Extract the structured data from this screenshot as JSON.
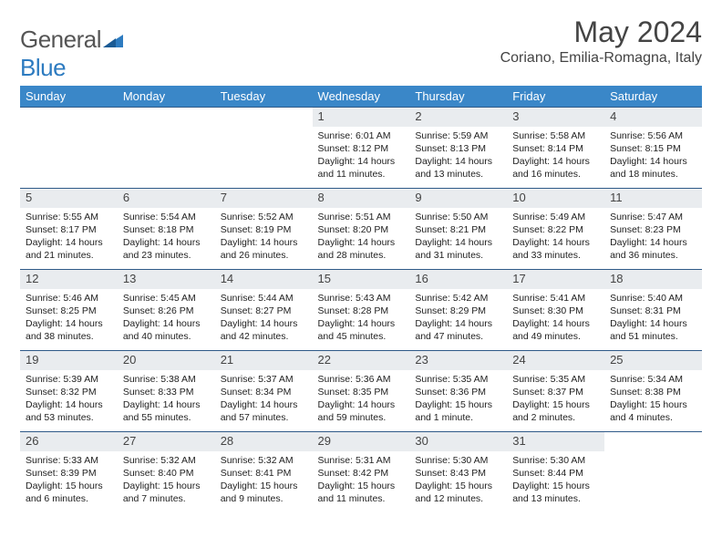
{
  "brand": {
    "name1": "General",
    "name2": "Blue"
  },
  "title": "May 2024",
  "location": "Coriano, Emilia-Romagna, Italy",
  "colors": {
    "header_bg": "#3a87c8",
    "header_text": "#ffffff",
    "daynum_bg": "#e9ecef",
    "border": "#2f5a88",
    "brand_blue": "#2d7bc0",
    "brand_gray": "#555555",
    "title_color": "#444444"
  },
  "weekdays": [
    "Sunday",
    "Monday",
    "Tuesday",
    "Wednesday",
    "Thursday",
    "Friday",
    "Saturday"
  ],
  "weeks": [
    [
      {
        "n": "",
        "lines": []
      },
      {
        "n": "",
        "lines": []
      },
      {
        "n": "",
        "lines": []
      },
      {
        "n": "1",
        "lines": [
          "Sunrise: 6:01 AM",
          "Sunset: 8:12 PM",
          "Daylight: 14 hours",
          "and 11 minutes."
        ]
      },
      {
        "n": "2",
        "lines": [
          "Sunrise: 5:59 AM",
          "Sunset: 8:13 PM",
          "Daylight: 14 hours",
          "and 13 minutes."
        ]
      },
      {
        "n": "3",
        "lines": [
          "Sunrise: 5:58 AM",
          "Sunset: 8:14 PM",
          "Daylight: 14 hours",
          "and 16 minutes."
        ]
      },
      {
        "n": "4",
        "lines": [
          "Sunrise: 5:56 AM",
          "Sunset: 8:15 PM",
          "Daylight: 14 hours",
          "and 18 minutes."
        ]
      }
    ],
    [
      {
        "n": "5",
        "lines": [
          "Sunrise: 5:55 AM",
          "Sunset: 8:17 PM",
          "Daylight: 14 hours",
          "and 21 minutes."
        ]
      },
      {
        "n": "6",
        "lines": [
          "Sunrise: 5:54 AM",
          "Sunset: 8:18 PM",
          "Daylight: 14 hours",
          "and 23 minutes."
        ]
      },
      {
        "n": "7",
        "lines": [
          "Sunrise: 5:52 AM",
          "Sunset: 8:19 PM",
          "Daylight: 14 hours",
          "and 26 minutes."
        ]
      },
      {
        "n": "8",
        "lines": [
          "Sunrise: 5:51 AM",
          "Sunset: 8:20 PM",
          "Daylight: 14 hours",
          "and 28 minutes."
        ]
      },
      {
        "n": "9",
        "lines": [
          "Sunrise: 5:50 AM",
          "Sunset: 8:21 PM",
          "Daylight: 14 hours",
          "and 31 minutes."
        ]
      },
      {
        "n": "10",
        "lines": [
          "Sunrise: 5:49 AM",
          "Sunset: 8:22 PM",
          "Daylight: 14 hours",
          "and 33 minutes."
        ]
      },
      {
        "n": "11",
        "lines": [
          "Sunrise: 5:47 AM",
          "Sunset: 8:23 PM",
          "Daylight: 14 hours",
          "and 36 minutes."
        ]
      }
    ],
    [
      {
        "n": "12",
        "lines": [
          "Sunrise: 5:46 AM",
          "Sunset: 8:25 PM",
          "Daylight: 14 hours",
          "and 38 minutes."
        ]
      },
      {
        "n": "13",
        "lines": [
          "Sunrise: 5:45 AM",
          "Sunset: 8:26 PM",
          "Daylight: 14 hours",
          "and 40 minutes."
        ]
      },
      {
        "n": "14",
        "lines": [
          "Sunrise: 5:44 AM",
          "Sunset: 8:27 PM",
          "Daylight: 14 hours",
          "and 42 minutes."
        ]
      },
      {
        "n": "15",
        "lines": [
          "Sunrise: 5:43 AM",
          "Sunset: 8:28 PM",
          "Daylight: 14 hours",
          "and 45 minutes."
        ]
      },
      {
        "n": "16",
        "lines": [
          "Sunrise: 5:42 AM",
          "Sunset: 8:29 PM",
          "Daylight: 14 hours",
          "and 47 minutes."
        ]
      },
      {
        "n": "17",
        "lines": [
          "Sunrise: 5:41 AM",
          "Sunset: 8:30 PM",
          "Daylight: 14 hours",
          "and 49 minutes."
        ]
      },
      {
        "n": "18",
        "lines": [
          "Sunrise: 5:40 AM",
          "Sunset: 8:31 PM",
          "Daylight: 14 hours",
          "and 51 minutes."
        ]
      }
    ],
    [
      {
        "n": "19",
        "lines": [
          "Sunrise: 5:39 AM",
          "Sunset: 8:32 PM",
          "Daylight: 14 hours",
          "and 53 minutes."
        ]
      },
      {
        "n": "20",
        "lines": [
          "Sunrise: 5:38 AM",
          "Sunset: 8:33 PM",
          "Daylight: 14 hours",
          "and 55 minutes."
        ]
      },
      {
        "n": "21",
        "lines": [
          "Sunrise: 5:37 AM",
          "Sunset: 8:34 PM",
          "Daylight: 14 hours",
          "and 57 minutes."
        ]
      },
      {
        "n": "22",
        "lines": [
          "Sunrise: 5:36 AM",
          "Sunset: 8:35 PM",
          "Daylight: 14 hours",
          "and 59 minutes."
        ]
      },
      {
        "n": "23",
        "lines": [
          "Sunrise: 5:35 AM",
          "Sunset: 8:36 PM",
          "Daylight: 15 hours",
          "and 1 minute."
        ]
      },
      {
        "n": "24",
        "lines": [
          "Sunrise: 5:35 AM",
          "Sunset: 8:37 PM",
          "Daylight: 15 hours",
          "and 2 minutes."
        ]
      },
      {
        "n": "25",
        "lines": [
          "Sunrise: 5:34 AM",
          "Sunset: 8:38 PM",
          "Daylight: 15 hours",
          "and 4 minutes."
        ]
      }
    ],
    [
      {
        "n": "26",
        "lines": [
          "Sunrise: 5:33 AM",
          "Sunset: 8:39 PM",
          "Daylight: 15 hours",
          "and 6 minutes."
        ]
      },
      {
        "n": "27",
        "lines": [
          "Sunrise: 5:32 AM",
          "Sunset: 8:40 PM",
          "Daylight: 15 hours",
          "and 7 minutes."
        ]
      },
      {
        "n": "28",
        "lines": [
          "Sunrise: 5:32 AM",
          "Sunset: 8:41 PM",
          "Daylight: 15 hours",
          "and 9 minutes."
        ]
      },
      {
        "n": "29",
        "lines": [
          "Sunrise: 5:31 AM",
          "Sunset: 8:42 PM",
          "Daylight: 15 hours",
          "and 11 minutes."
        ]
      },
      {
        "n": "30",
        "lines": [
          "Sunrise: 5:30 AM",
          "Sunset: 8:43 PM",
          "Daylight: 15 hours",
          "and 12 minutes."
        ]
      },
      {
        "n": "31",
        "lines": [
          "Sunrise: 5:30 AM",
          "Sunset: 8:44 PM",
          "Daylight: 15 hours",
          "and 13 minutes."
        ]
      },
      {
        "n": "",
        "lines": []
      }
    ]
  ]
}
